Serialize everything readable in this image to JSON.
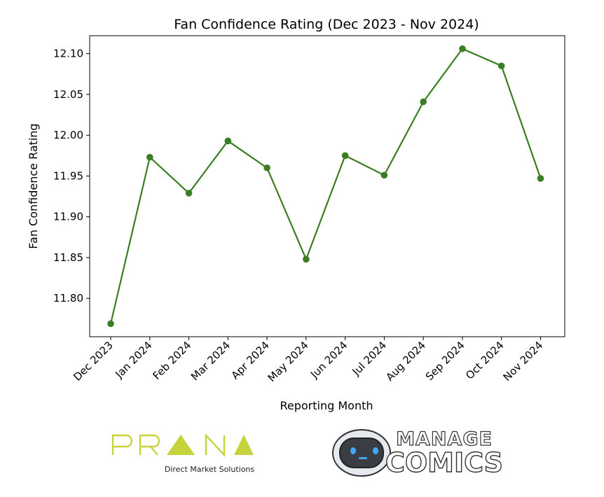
{
  "chart_data": {
    "type": "line",
    "title": "Fan Confidence Rating (Dec 2023 - Nov 2024)",
    "xlabel": "Reporting Month",
    "ylabel": "Fan Confidence Rating",
    "categories": [
      "Dec 2023",
      "Jan 2024",
      "Feb 2024",
      "Mar 2024",
      "Apr 2024",
      "May 2024",
      "Jun 2024",
      "Jul 2024",
      "Aug 2024",
      "Sep 2024",
      "Oct 2024",
      "Nov 2024"
    ],
    "series": [
      {
        "values": [
          11.769,
          11.973,
          11.929,
          11.993,
          11.96,
          11.848,
          11.975,
          11.951,
          12.041,
          12.106,
          12.085,
          11.947
        ]
      }
    ],
    "yticks": [
      "11.80",
      "11.85",
      "11.90",
      "11.95",
      "12.00",
      "12.05",
      "12.10"
    ],
    "ylim": [
      11.753,
      12.122
    ],
    "grid": false,
    "line_color": "#3a7d22"
  },
  "logos": {
    "prana": {
      "wordmark": "PRANA",
      "tagline": "Direct Market Solutions",
      "color": "#c7d33c"
    },
    "manage_comics": {
      "line1": "MANAGE",
      "line2": "COMICS"
    }
  }
}
